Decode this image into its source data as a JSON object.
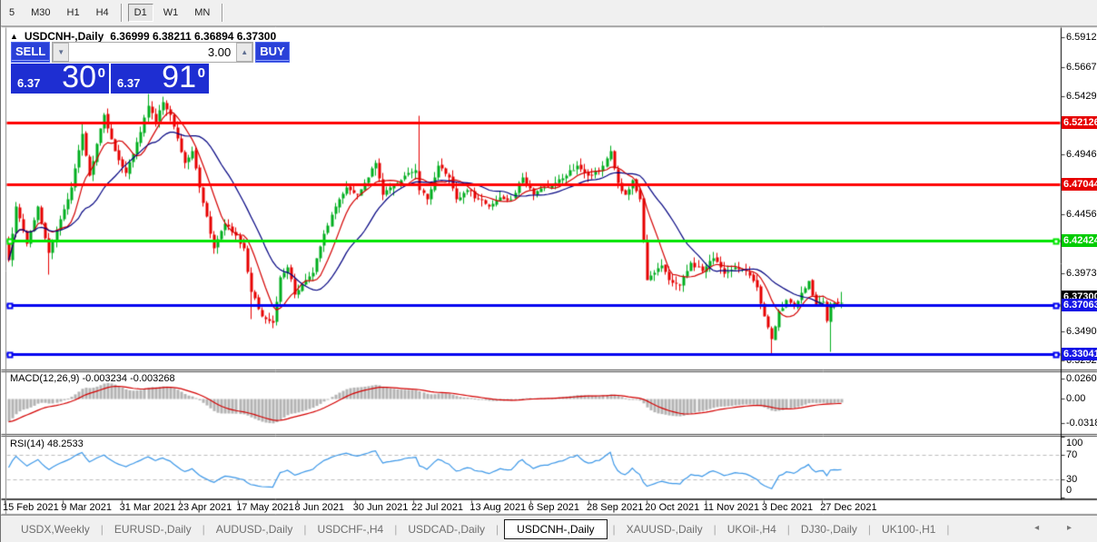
{
  "toolbar": {
    "items": [
      {
        "label": "5",
        "active": false
      },
      {
        "label": "M30",
        "active": false
      },
      {
        "label": "H1",
        "active": false
      },
      {
        "label": "H4",
        "active": false
      },
      {
        "label": "|sep"
      },
      {
        "label": "D1",
        "active": true
      },
      {
        "label": "W1",
        "active": false
      },
      {
        "label": "MN",
        "active": false
      },
      {
        "label": "|sep"
      }
    ]
  },
  "chart": {
    "collapse_icon": "▲",
    "title_symbol": "USDCNH-,Daily",
    "title_ohlc": "6.36999 6.38211 6.36894 6.37300"
  },
  "trade_panel": {
    "sell_label": "SELL",
    "buy_label": "BUY",
    "volume": "3.00",
    "spin_down_icon": "▼",
    "spin_up_icon": "▲",
    "sell_price_small": "6.37",
    "sell_price_big": "30",
    "sell_price_sup": "0",
    "buy_price_small": "6.37",
    "buy_price_big": "91",
    "buy_price_sup": "0"
  },
  "labels": {
    "macd": "MACD(12,26,9) -0.003234 -0.003268",
    "rsi": "RSI(14) 48.2533"
  },
  "price_axis": {
    "ticks": [
      "6.59120",
      "6.56670",
      "6.54290",
      "6.49460",
      "6.44560",
      "6.39730",
      "6.34900",
      "6.32520"
    ],
    "badges": [
      {
        "label": "6.52126",
        "price": 6.52126,
        "color": "#E60000"
      },
      {
        "label": "6.47044",
        "price": 6.47044,
        "color": "#E60000"
      },
      {
        "label": "6.42424",
        "price": 6.42424,
        "color": "#00CC00"
      },
      {
        "label": "6.37063",
        "price": 6.37063,
        "color": "#1414E6"
      },
      {
        "label": "6.33041",
        "price": 6.33041,
        "color": "#1414E6"
      }
    ],
    "current_price": {
      "label": "6.37300",
      "price": 6.373,
      "color": "#000000"
    }
  },
  "macd_axis": [
    "0.02607",
    "0.00",
    "-0.03187"
  ],
  "rsi_axis": [
    "100",
    "70",
    "30",
    "0"
  ],
  "date_axis": [
    "15 Feb 2021",
    "9 Mar 2021",
    "31 Mar 2021",
    "23 Apr 2021",
    "17 May 2021",
    "8 Jun 2021",
    "30 Jun 2021",
    "22 Jul 2021",
    "13 Aug 2021",
    "6 Sep 2021",
    "28 Sep 2021",
    "20 Oct 2021",
    "11 Nov 2021",
    "3 Dec 2021",
    "27 Dec 2021"
  ],
  "tabs": {
    "items": [
      "USDX,Weekly",
      "EURUSD-,Daily",
      "AUDUSD-,Daily",
      "USDCHF-,H4",
      "USDCAD-,Daily",
      "USDCNH-,Daily",
      "XAUUSD-,Daily",
      "UKOil-,H4",
      "DJ30-,Daily",
      "UK100-,H1"
    ],
    "active_index": 5,
    "scroll_arrows": "◂ ▸"
  },
  "colors": {
    "candle_up": "#00AE1E",
    "candle_down": "#E60000",
    "ma_fast": "#D40000",
    "ma_slow": "#000080",
    "macd_hist": "#b4b4b4",
    "macd_signal": "#D40000",
    "rsi_line": "#3B97E8",
    "hline_red": "#FF0000",
    "hline_green": "#00E400",
    "hline_blue": "#0000F0"
  },
  "chart_data": {
    "type": "candlestick",
    "symbol": "USDCNH",
    "timeframe": "Daily",
    "bars": 228,
    "last_close": 6.373,
    "visible_price_range": [
      6.3185,
      6.5987
    ],
    "hlines": [
      {
        "price": 6.52126,
        "color": "#FF0000",
        "style": "solid",
        "width": 3
      },
      {
        "price": 6.47044,
        "color": "#FF0000",
        "style": "solid",
        "width": 3
      },
      {
        "price": 6.42424,
        "color": "#00E400",
        "style": "solid",
        "width": 3,
        "handles": true
      },
      {
        "price": 6.37063,
        "color": "#0000F0",
        "style": "solid",
        "width": 3,
        "handles": true
      },
      {
        "price": 6.33041,
        "color": "#0000F0",
        "style": "solid",
        "width": 3,
        "handles": true
      }
    ],
    "close_waypoints": [
      [
        0,
        6.408
      ],
      [
        2,
        6.452
      ],
      [
        5,
        6.422
      ],
      [
        8,
        6.452
      ],
      [
        11,
        6.414
      ],
      [
        14,
        6.442
      ],
      [
        17,
        6.468
      ],
      [
        20,
        6.512
      ],
      [
        22,
        6.478
      ],
      [
        26,
        6.528
      ],
      [
        29,
        6.498
      ],
      [
        32,
        6.48
      ],
      [
        35,
        6.505
      ],
      [
        38,
        6.535
      ],
      [
        40,
        6.522
      ],
      [
        42,
        6.538
      ],
      [
        44,
        6.528
      ],
      [
        46,
        6.508
      ],
      [
        48,
        6.488
      ],
      [
        50,
        6.498
      ],
      [
        53,
        6.455
      ],
      [
        56,
        6.418
      ],
      [
        59,
        6.438
      ],
      [
        62,
        6.428
      ],
      [
        64,
        6.418
      ],
      [
        66,
        6.382
      ],
      [
        69,
        6.362
      ],
      [
        72,
        6.357
      ],
      [
        74,
        6.394
      ],
      [
        76,
        6.402
      ],
      [
        78,
        6.38
      ],
      [
        80,
        6.388
      ],
      [
        83,
        6.398
      ],
      [
        86,
        6.43
      ],
      [
        89,
        6.452
      ],
      [
        92,
        6.468
      ],
      [
        95,
        6.462
      ],
      [
        98,
        6.476
      ],
      [
        100,
        6.488
      ],
      [
        102,
        6.462
      ],
      [
        105,
        6.47
      ],
      [
        108,
        6.478
      ],
      [
        111,
        6.482
      ],
      [
        112,
        6.466
      ],
      [
        114,
        6.458
      ],
      [
        117,
        6.486
      ],
      [
        120,
        6.476
      ],
      [
        122,
        6.458
      ],
      [
        125,
        6.466
      ],
      [
        128,
        6.458
      ],
      [
        131,
        6.452
      ],
      [
        134,
        6.46
      ],
      [
        137,
        6.458
      ],
      [
        140,
        6.476
      ],
      [
        143,
        6.462
      ],
      [
        146,
        6.468
      ],
      [
        149,
        6.472
      ],
      [
        152,
        6.478
      ],
      [
        155,
        6.486
      ],
      [
        158,
        6.478
      ],
      [
        161,
        6.482
      ],
      [
        164,
        6.498
      ],
      [
        166,
        6.472
      ],
      [
        168,
        6.462
      ],
      [
        170,
        6.474
      ],
      [
        172,
        6.458
      ],
      [
        174,
        6.392
      ],
      [
        176,
        6.398
      ],
      [
        178,
        6.404
      ],
      [
        180,
        6.392
      ],
      [
        183,
        6.387
      ],
      [
        186,
        6.406
      ],
      [
        189,
        6.399
      ],
      [
        192,
        6.41
      ],
      [
        195,
        6.397
      ],
      [
        198,
        6.402
      ],
      [
        201,
        6.399
      ],
      [
        204,
        6.386
      ],
      [
        206,
        6.362
      ],
      [
        208,
        6.343
      ],
      [
        210,
        6.366
      ],
      [
        212,
        6.375
      ],
      [
        214,
        6.37
      ],
      [
        216,
        6.381
      ],
      [
        218,
        6.391
      ],
      [
        220,
        6.371
      ],
      [
        222,
        6.374
      ],
      [
        223,
        6.358
      ],
      [
        224,
        6.372
      ],
      [
        227,
        6.373
      ]
    ],
    "wick_overrides": {
      "11": {
        "l": 6.396
      },
      "20": {
        "h": 6.52
      },
      "38": {
        "h": 6.545
      },
      "42": {
        "h": 6.543
      },
      "66": {
        "l": 6.36
      },
      "72": {
        "l": 6.352
      },
      "112": {
        "h": 6.527
      },
      "208": {
        "l": 6.331
      },
      "224": {
        "l": 6.333
      },
      "227": {
        "h": 6.3821,
        "l": 6.3689
      }
    },
    "indicators": {
      "ma_fast_period": 8,
      "ma_slow_period": 20,
      "macd_params": "12,26,9",
      "macd_values": [
        -0.003234,
        -0.003268
      ],
      "macd_axis_range": [
        -0.03187,
        0.02607
      ],
      "rsi_period": 14,
      "rsi_value": 48.2533,
      "rsi_levels": [
        30,
        70
      ]
    }
  }
}
